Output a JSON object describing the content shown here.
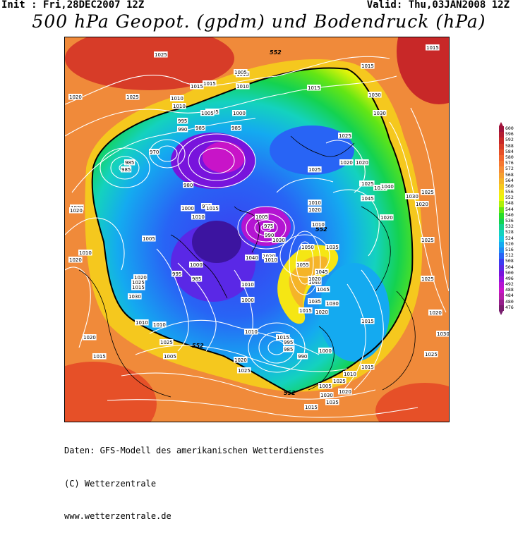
{
  "header": {
    "init": "Init : Fri,28DEC2007 12Z",
    "valid": "Valid: Thu,03JAN2008 12Z",
    "title": "500 hPa Geopot. (gpdm) und Bodendruck (hPa)"
  },
  "footer": {
    "line1": "Daten: GFS-Modell des amerikanischen Wetterdienstes",
    "line2": "(C) Wetterzentrale",
    "line3": "www.wetterzentrale.de"
  },
  "colorbar": {
    "levels": [
      {
        "label": "600",
        "color": "#a0143c"
      },
      {
        "label": "596",
        "color": "#b41e32"
      },
      {
        "label": "592",
        "color": "#c82828"
      },
      {
        "label": "588",
        "color": "#d73c28"
      },
      {
        "label": "584",
        "color": "#e65028"
      },
      {
        "label": "580",
        "color": "#f0642d"
      },
      {
        "label": "576",
        "color": "#f57832"
      },
      {
        "label": "572",
        "color": "#f58c37"
      },
      {
        "label": "568",
        "color": "#f5a032"
      },
      {
        "label": "564",
        "color": "#f5b428"
      },
      {
        "label": "560",
        "color": "#f5c81e"
      },
      {
        "label": "556",
        "color": "#f5e614"
      },
      {
        "label": "552",
        "color": "#e6f50a"
      },
      {
        "label": "548",
        "color": "#aff00a"
      },
      {
        "label": "544",
        "color": "#64e614"
      },
      {
        "label": "540",
        "color": "#28dc28"
      },
      {
        "label": "536",
        "color": "#14d250"
      },
      {
        "label": "532",
        "color": "#14d28c"
      },
      {
        "label": "528",
        "color": "#14d2be"
      },
      {
        "label": "524",
        "color": "#14c8e6"
      },
      {
        "label": "520",
        "color": "#14aaf0"
      },
      {
        "label": "516",
        "color": "#1e8cf5"
      },
      {
        "label": "512",
        "color": "#2864f5"
      },
      {
        "label": "508",
        "color": "#3c3cf0"
      },
      {
        "label": "504",
        "color": "#5a28e6"
      },
      {
        "label": "500",
        "color": "#7814dc"
      },
      {
        "label": "496",
        "color": "#9614dc"
      },
      {
        "label": "492",
        "color": "#b414d2"
      },
      {
        "label": "488",
        "color": "#c814c8"
      },
      {
        "label": "484",
        "color": "#b41eaa"
      },
      {
        "label": "480",
        "color": "#961e8c"
      },
      {
        "label": "476",
        "color": "#781e6e"
      }
    ]
  },
  "geopotential_labels": [
    "552",
    "552",
    "552",
    "552"
  ],
  "pressure_labels": [
    "1025",
    "1015",
    "1015",
    "1020",
    "1025",
    "1015",
    "1010",
    "1010",
    "1015",
    "1005",
    "1005",
    "1010",
    "1010",
    "1015",
    "1030",
    "1030",
    "1020",
    "1005",
    "1000",
    "995",
    "990",
    "985",
    "985",
    "970",
    "985",
    "985",
    "980",
    "995",
    "1000",
    "1010",
    "1020",
    "1015",
    "1025",
    "1030",
    "1035",
    "1040",
    "1025",
    "1020",
    "1020",
    "1045",
    "1030",
    "1025",
    "1020",
    "1025",
    "1020",
    "1025",
    "1010",
    "1020",
    "1005",
    "1005",
    "1010",
    "1020",
    "1030",
    "1010",
    "1035",
    "1030",
    "1020",
    "1025",
    "1015",
    "1010",
    "1010",
    "1015",
    "975",
    "990",
    "1020",
    "1040",
    "1010",
    "1000",
    "995",
    "985",
    "1050",
    "1055",
    "1045",
    "1040",
    "1045",
    "1035",
    "1030",
    "1020",
    "1015",
    "1010",
    "1000",
    "990",
    "995",
    "985",
    "1000",
    "1005",
    "1015",
    "1030",
    "1035",
    "1025",
    "1020",
    "1010",
    "1015",
    "1025",
    "1020",
    "1030",
    "1025",
    "1005",
    "1010",
    "1015",
    "1020",
    "1025",
    "1015",
    "1020",
    "1020",
    "1015",
    "1025"
  ]
}
